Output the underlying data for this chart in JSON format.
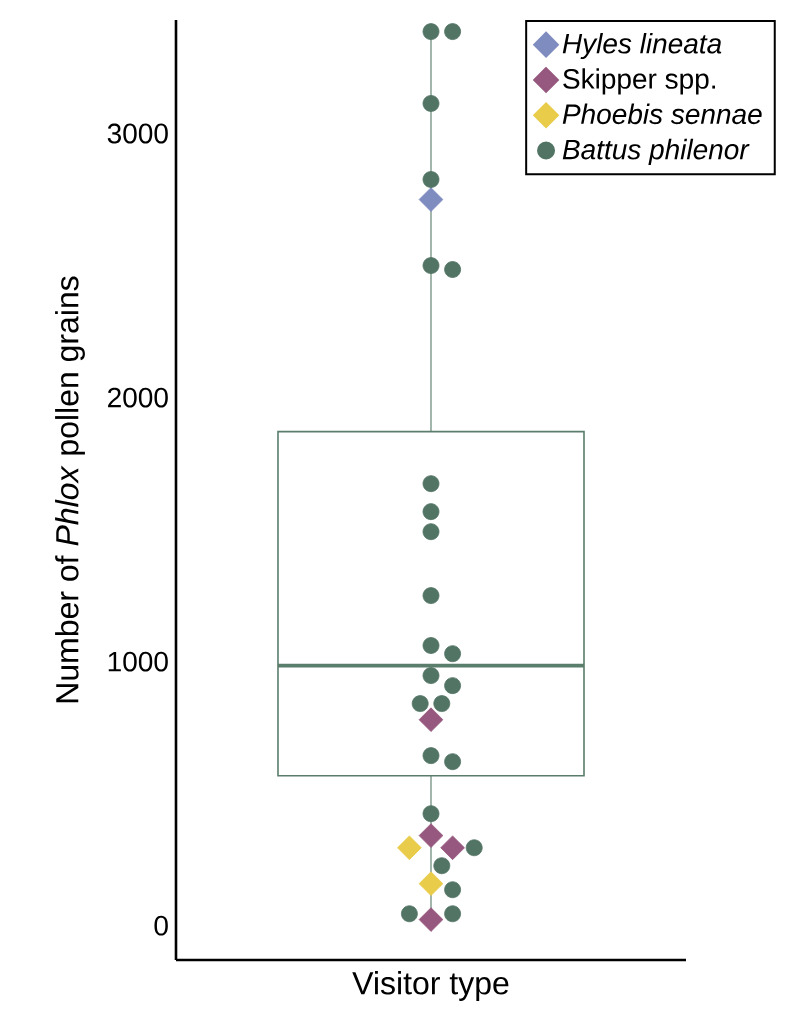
{
  "chart_data": {
    "type": "box",
    "xlabel": "Visitor type",
    "ylabel": "Number of *Phlox* pollen grains",
    "categories": [
      null
    ],
    "color": "#5a7d6c",
    "boxes": [
      {
        "low": 45,
        "q1": 568,
        "median": 985,
        "q3": 1871,
        "high": 3386
      }
    ],
    "ylim": [
      -130,
      3430
    ],
    "yticks": [
      0,
      1000,
      2000,
      3000
    ],
    "tick_labels": "y",
    "legend": "top right",
    "series": [
      {
        "name": "*Hyles lineata*",
        "type": "scatter",
        "marker": "diamond",
        "color": "#7f8cc0",
        "x": [
          null
        ],
        "values": [
          2750
        ]
      },
      {
        "name": "Skipper spp.",
        "type": "scatter",
        "marker": "diamond",
        "color": "#96587e",
        "x": [
          null,
          null,
          null,
          null
        ],
        "values": [
          780,
          341,
          295,
          23
        ]
      },
      {
        "name": "*Phoebis sennae*",
        "type": "scatter",
        "marker": "diamond",
        "color": "#e8cc4a",
        "x": [
          null,
          null
        ],
        "values": [
          295,
          159
        ]
      },
      {
        "name": "*Battus philenor*",
        "type": "scatter",
        "marker": "circle",
        "color": "#527464",
        "x": [
          null,
          null,
          null,
          null,
          null,
          null,
          null,
          null,
          null,
          null,
          null,
          null,
          null,
          null,
          null,
          null,
          null,
          null,
          null,
          null,
          null,
          null,
          null,
          null
        ],
        "values": [
          3386,
          3386,
          3114,
          2826,
          2500,
          2485,
          1674,
          1568,
          1492,
          1250,
          1061,
          1030,
          947,
          909,
          841,
          841,
          644,
          621,
          424,
          295,
          227,
          136,
          45,
          45
        ]
      }
    ]
  }
}
